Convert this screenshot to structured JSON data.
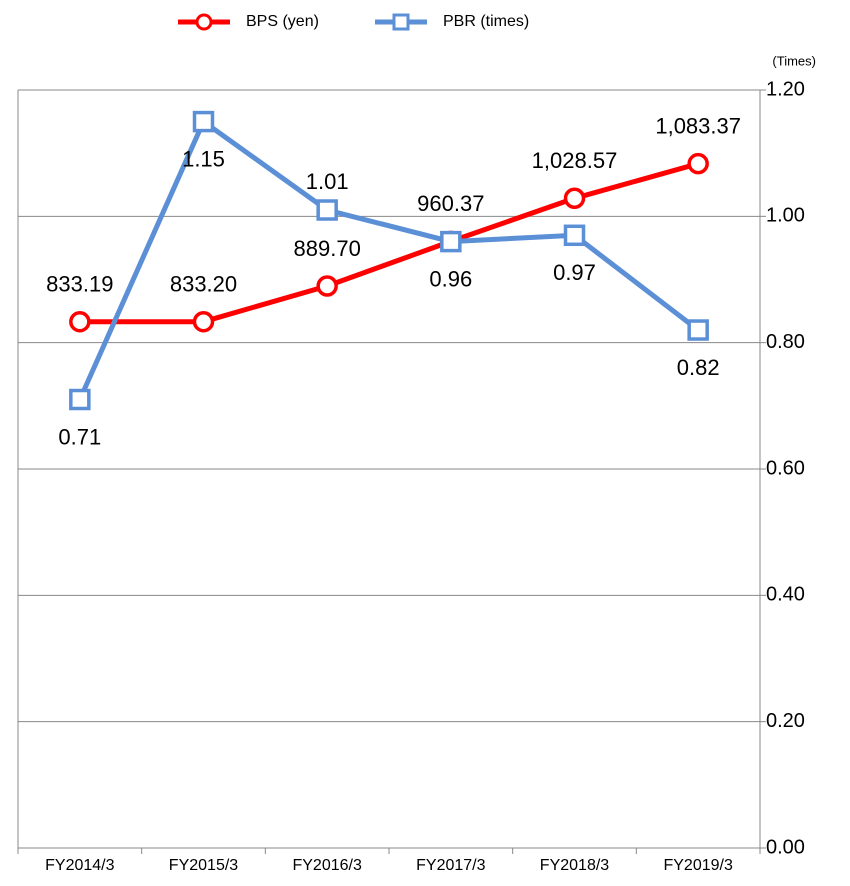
{
  "chart_data": {
    "type": "line",
    "categories": [
      "FY2014/3",
      "FY2015/3",
      "FY2016/3",
      "FY2017/3",
      "FY2018/3",
      "FY2019/3"
    ],
    "series": [
      {
        "name": "BPS (yen)",
        "color": "#ff0000",
        "marker": "circle",
        "axis": "y",
        "values": [
          833.19,
          833.2,
          889.7,
          960.37,
          1028.57,
          1083.37
        ],
        "value_labels": [
          "833.19",
          "833.20",
          "889.70",
          "960.37",
          "1,028.57",
          "1,083.37"
        ]
      },
      {
        "name": "PBR (times)",
        "color": "#5b8fd6",
        "marker": "square",
        "axis": "y2",
        "values": [
          0.71,
          1.15,
          1.01,
          0.96,
          0.97,
          0.82
        ]
      }
    ],
    "ylim": [
      0,
      1200
    ],
    "y2lim": [
      0,
      1.2
    ],
    "y2label": "(Times)",
    "y2ticks": [
      {
        "value": 0,
        "label": "0.00"
      },
      {
        "value": 0.2,
        "label": "0.20"
      },
      {
        "value": 0.4,
        "label": "0.40"
      },
      {
        "value": 0.6,
        "label": "0.60"
      },
      {
        "value": 0.8,
        "label": "0.80"
      },
      {
        "value": 1.0,
        "label": "1.00"
      },
      {
        "value": 1.2,
        "label": "1.20"
      }
    ],
    "grid": true,
    "legend": "top"
  }
}
